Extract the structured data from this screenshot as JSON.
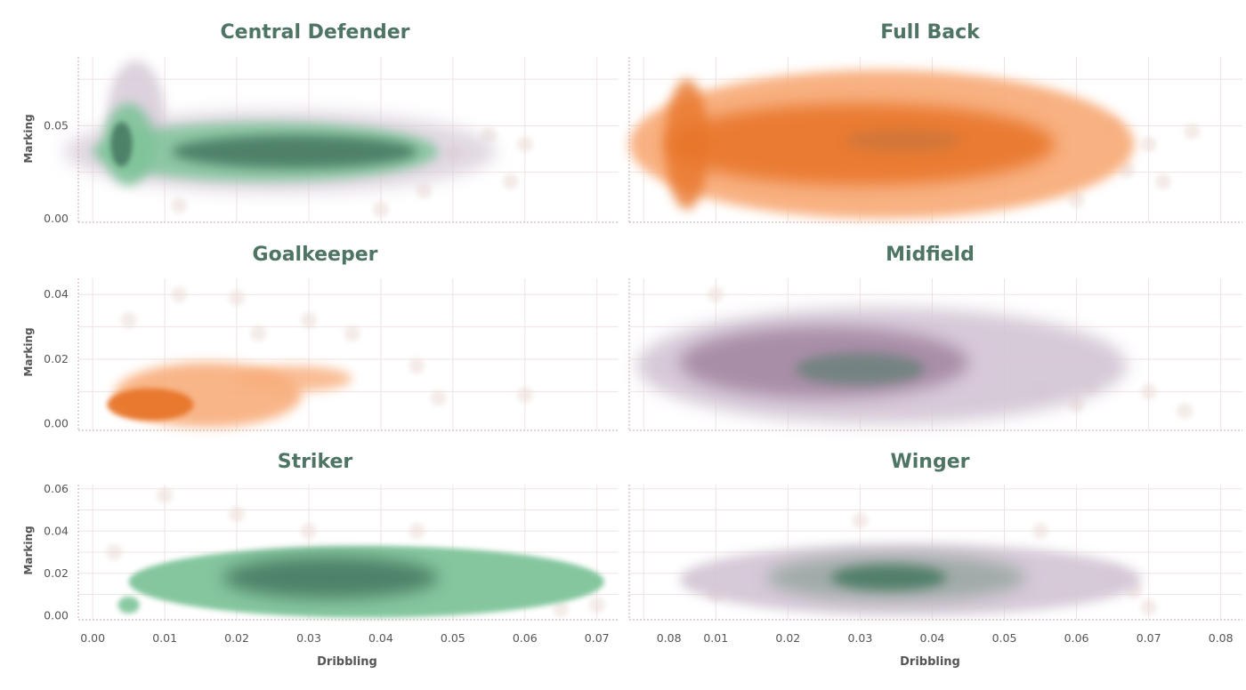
{
  "chart_data": [
    {
      "type": "scatter",
      "title": "Central Defender",
      "xlabel": "",
      "ylabel": "Marking",
      "xlim": [
        -0.002,
        0.073
      ],
      "ylim": [
        -0.002,
        0.087
      ],
      "yticks": [
        {
          "v": 0.0,
          "label": "0.00"
        },
        {
          "v": 0.05,
          "label": "0.05"
        }
      ],
      "xticks": [],
      "palette": "green",
      "density_core": {
        "x": 0.033,
        "y": 0.037
      }
    },
    {
      "type": "scatter",
      "title": "Full Back",
      "xlabel": "",
      "ylabel": "",
      "xlim": [
        -0.002,
        0.083
      ],
      "ylim": [
        -0.002,
        0.087
      ],
      "yticks": [],
      "xticks": [],
      "palette": "orange",
      "density_core": {
        "x": 0.036,
        "y": 0.042
      }
    },
    {
      "type": "scatter",
      "title": "Goalkeeper",
      "xlabel": "",
      "ylabel": "Marking",
      "xlim": [
        -0.002,
        0.073
      ],
      "ylim": [
        -0.002,
        0.045
      ],
      "yticks": [
        {
          "v": 0.0,
          "label": "0.00"
        },
        {
          "v": 0.02,
          "label": "0.02"
        },
        {
          "v": 0.04,
          "label": "0.04"
        }
      ],
      "xticks": [],
      "palette": "orange",
      "density_core": {
        "x": 0.008,
        "y": 0.005
      }
    },
    {
      "type": "scatter",
      "title": "Midfield",
      "xlabel": "",
      "ylabel": "",
      "xlim": [
        -0.002,
        0.083
      ],
      "ylim": [
        -0.002,
        0.045
      ],
      "yticks": [],
      "xticks": [],
      "palette": "purple",
      "density_core": {
        "x": 0.03,
        "y": 0.017
      }
    },
    {
      "type": "scatter",
      "title": "Striker",
      "xlabel": "Dribbling",
      "ylabel": "Marking",
      "xlim": [
        -0.002,
        0.073
      ],
      "ylim": [
        -0.002,
        0.062
      ],
      "yticks": [
        {
          "v": 0.0,
          "label": "0.00"
        },
        {
          "v": 0.02,
          "label": "0.02"
        },
        {
          "v": 0.04,
          "label": "0.04"
        },
        {
          "v": 0.06,
          "label": "0.06"
        }
      ],
      "xticks": [
        {
          "v": 0.0,
          "label": "0.00"
        },
        {
          "v": 0.01,
          "label": "0.01"
        },
        {
          "v": 0.02,
          "label": "0.02"
        },
        {
          "v": 0.03,
          "label": "0.03"
        },
        {
          "v": 0.04,
          "label": "0.04"
        },
        {
          "v": 0.05,
          "label": "0.05"
        },
        {
          "v": 0.06,
          "label": "0.06"
        },
        {
          "v": 0.07,
          "label": "0.07"
        },
        {
          "v": 0.08,
          "label": "0.08"
        }
      ],
      "palette": "green",
      "density_core": {
        "x": 0.032,
        "y": 0.018
      }
    },
    {
      "type": "scatter",
      "title": "Winger",
      "xlabel": "Dribbling",
      "ylabel": "",
      "xlim": [
        -0.002,
        0.083
      ],
      "ylim": [
        -0.002,
        0.062
      ],
      "yticks": [],
      "xticks": [
        {
          "v": 0.01,
          "label": "0.01"
        },
        {
          "v": 0.02,
          "label": "0.02"
        },
        {
          "v": 0.03,
          "label": "0.03"
        },
        {
          "v": 0.04,
          "label": "0.04"
        },
        {
          "v": 0.05,
          "label": "0.05"
        },
        {
          "v": 0.06,
          "label": "0.06"
        },
        {
          "v": 0.07,
          "label": "0.07"
        },
        {
          "v": 0.08,
          "label": "0.08"
        }
      ],
      "palette": "mixed",
      "density_core": {
        "x": 0.035,
        "y": 0.018
      }
    }
  ],
  "colors": {
    "title": "#4e7563",
    "grid": "#efe3e3",
    "axis": "#c9a9a9",
    "green_dark": "#4a7a64",
    "green_light": "#7fc49a",
    "orange_dark": "#e8762c",
    "orange_light": "#f8ad7c",
    "purple_dark": "#a2849f",
    "purple_light": "#d4c7d6",
    "halo": "#eadcd6"
  }
}
